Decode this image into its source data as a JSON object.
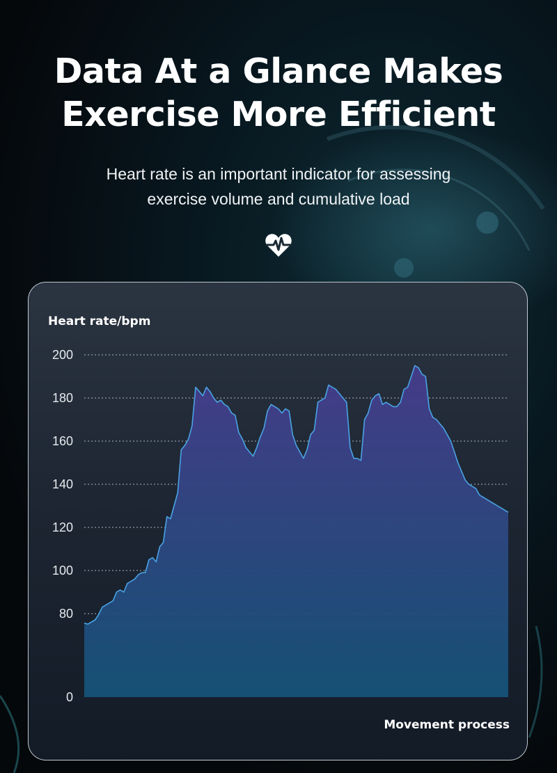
{
  "headline": {
    "line1": "Data At a Glance Makes",
    "line2": "Exercise More Efficient"
  },
  "subtitle": {
    "line1": "Heart rate is an important indicator for assessing",
    "line2": "exercise volume and cumulative load"
  },
  "icon": "heart-pulse-icon",
  "colors": {
    "line": "#4aa3e6",
    "fill_top": "#463c8c",
    "fill_bottom": "#155378",
    "grid": "#b8c2cc"
  },
  "chart_data": {
    "type": "area",
    "title": "",
    "ylabel": "Heart rate/bpm",
    "xlabel": "Movement process",
    "yticks": [
      0,
      80,
      100,
      120,
      140,
      160,
      180,
      200
    ],
    "gridlines": [
      80,
      100,
      120,
      140,
      160,
      180,
      200
    ],
    "ylim": [
      0,
      200
    ],
    "grid": true,
    "series": [
      {
        "x": [
          0,
          1,
          2,
          3,
          4,
          5,
          6,
          7,
          8,
          9,
          10,
          11,
          12,
          13,
          14,
          15,
          16,
          17,
          18,
          19,
          20,
          21,
          22,
          23,
          24,
          25,
          26,
          27,
          28,
          29,
          30,
          31,
          32,
          33,
          34,
          35,
          36,
          37,
          38,
          39,
          40,
          41,
          42,
          43,
          44,
          45,
          46,
          47,
          48,
          49,
          50,
          51,
          52,
          53,
          54,
          55,
          56,
          57,
          58,
          59,
          60,
          61,
          62,
          63,
          64,
          65,
          66,
          67,
          68,
          69,
          70,
          71,
          72,
          73,
          74,
          75,
          76,
          77,
          78,
          79,
          80,
          81,
          82,
          83,
          84,
          85,
          86,
          87,
          88,
          89,
          90,
          91,
          92,
          93,
          94,
          95,
          96,
          97,
          98,
          99,
          100,
          101,
          102,
          103,
          104,
          105,
          106,
          107,
          108,
          109,
          110,
          111,
          112,
          113,
          114,
          115,
          116,
          117,
          118
        ],
        "values": [
          71,
          70,
          72,
          74,
          79,
          83,
          84,
          85,
          86,
          90,
          91,
          90,
          94,
          95,
          96,
          98,
          99,
          99,
          105,
          106,
          104,
          111,
          113,
          125,
          124,
          130,
          136,
          156,
          158,
          161,
          167,
          185,
          183,
          181,
          185,
          183,
          180,
          178,
          179,
          177,
          176,
          173,
          172,
          164,
          161,
          157,
          155,
          153,
          157,
          162,
          166,
          174,
          177,
          176,
          175,
          173,
          175,
          174,
          163,
          158,
          155,
          152,
          156,
          163,
          165,
          178,
          179,
          180,
          186,
          185,
          184,
          182,
          180,
          178,
          157,
          152,
          152,
          151,
          170,
          173,
          179,
          181,
          182,
          177,
          178,
          177,
          176,
          176,
          178,
          184,
          185,
          190,
          195,
          194,
          191,
          190,
          175,
          171,
          170,
          168,
          166,
          163,
          160,
          155,
          150,
          146,
          142,
          140,
          139,
          138,
          135,
          134,
          133,
          132,
          131,
          130,
          129,
          128,
          127
        ]
      }
    ]
  }
}
